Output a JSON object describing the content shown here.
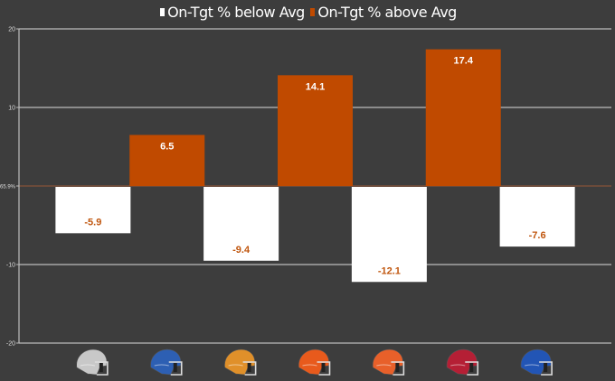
{
  "legend": {
    "below_label": "On-Tgt % below Avg",
    "above_label": "On-Tgt % above Avg",
    "placement": "top-center"
  },
  "chart_data": {
    "type": "bar",
    "title": "",
    "xlabel": "",
    "ylabel": "",
    "ylim": [
      -20,
      20
    ],
    "yticks": [
      "20",
      "10",
      "65.9%",
      "-10",
      "-20"
    ],
    "ytick_values": [
      20,
      10,
      0,
      -10,
      -20
    ],
    "baseline_label": "65.9%",
    "grid": true,
    "categories": [
      "gray-helmet-icon",
      "blue-helmet-icon",
      "orange-helmet-icon",
      "red-orange-helmet-icon",
      "orange-helmet-icon-2",
      "crimson-helmet-icon",
      "royal-blue-helmet-icon"
    ],
    "helmet_colors": [
      "#c8c8c8",
      "#2d5fb3",
      "#e0902a",
      "#e85a1c",
      "#e8602a",
      "#b51f35",
      "#2255b5"
    ],
    "values": [
      -5.9,
      6.5,
      -9.4,
      14.1,
      -12.1,
      17.4,
      -7.6
    ],
    "data_labels": [
      "-5.9",
      "6.5",
      "-9.4",
      "14.1",
      "-12.1",
      "17.4",
      "-7.6"
    ],
    "series_colors": {
      "below": "#ffffff",
      "above": "#c04a00"
    },
    "label_colors": {
      "below": "#c0560e",
      "above": "#ffffff"
    }
  }
}
